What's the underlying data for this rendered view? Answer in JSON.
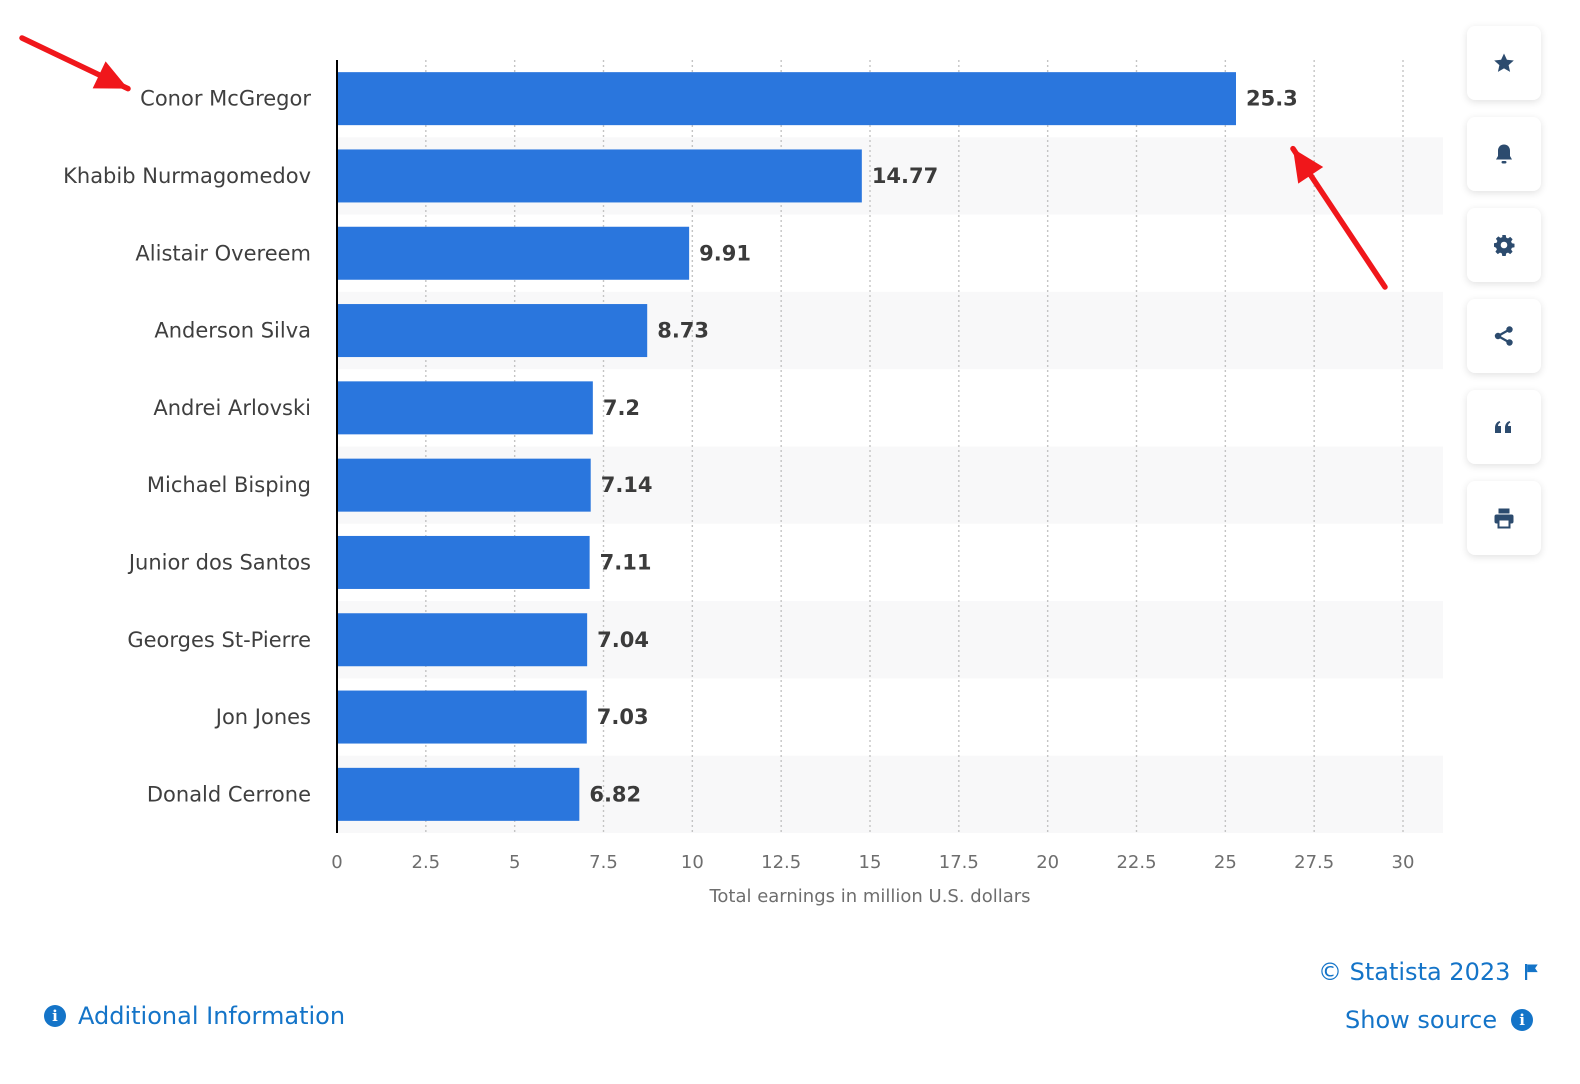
{
  "chart_data": {
    "type": "bar",
    "orientation": "horizontal",
    "categories": [
      "Conor McGregor",
      "Khabib Nurmagomedov",
      "Alistair Overeem",
      "Anderson Silva",
      "Andrei Arlovski",
      "Michael Bisping",
      "Junior dos Santos",
      "Georges St-Pierre",
      "Jon Jones",
      "Donald Cerrone"
    ],
    "values": [
      25.3,
      14.77,
      9.91,
      8.73,
      7.2,
      7.14,
      7.11,
      7.04,
      7.03,
      6.82
    ],
    "value_labels": [
      "25.3",
      "14.77",
      "9.91",
      "8.73",
      "7.2",
      "7.14",
      "7.11",
      "7.04",
      "7.03",
      "6.82"
    ],
    "xlabel": "Total earnings in million U.S. dollars",
    "xlim": [
      0,
      30
    ],
    "x_ticks": [
      "0",
      "2.5",
      "5",
      "7.5",
      "10",
      "12.5",
      "15",
      "17.5",
      "20",
      "22.5",
      "25",
      "27.5",
      "30"
    ],
    "bar_color": "#2a76dd",
    "grid": true,
    "annotations": [
      {
        "type": "arrow",
        "color": "#f0171b",
        "points_to": "Conor McGregor"
      },
      {
        "type": "arrow",
        "color": "#f0171b",
        "points_to": "25.3"
      }
    ]
  },
  "toolbar": {
    "buttons": [
      {
        "icon": "star-icon"
      },
      {
        "icon": "bell-icon"
      },
      {
        "icon": "gear-icon"
      },
      {
        "icon": "share-icon"
      },
      {
        "icon": "quote-icon"
      },
      {
        "icon": "print-icon"
      }
    ]
  },
  "footer": {
    "additional_info": "Additional Information",
    "copyright": "© Statista 2023",
    "show_source": "Show source",
    "link_color": "#1474c8"
  }
}
